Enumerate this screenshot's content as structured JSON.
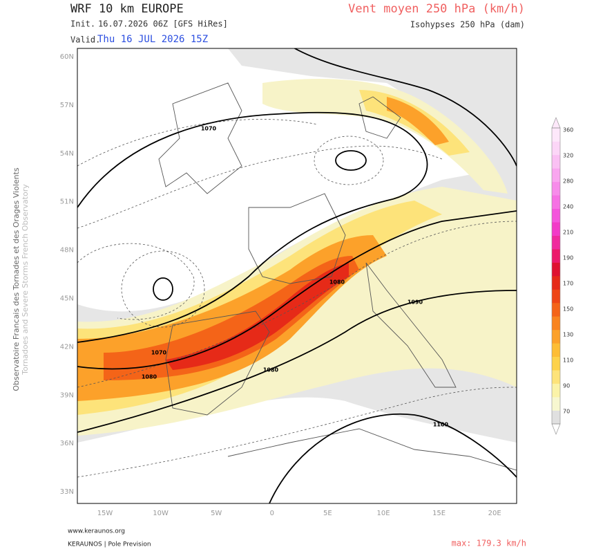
{
  "header": {
    "title": "WRF 10 km EUROPE",
    "init_label": "Init.",
    "init": "16.07.2026 06Z [GFS HiRes]",
    "valid_label": "Valid.",
    "valid": "Thu 16 JUL 2026 15Z",
    "parameter": "Vent moyen 250 hPa (km/h)",
    "contours": "Isohypses 250 hPa (dam)"
  },
  "side": {
    "line1": "Observatoire Francais des Tornades et des Orages Violents",
    "line2": "Tornadoes and Severe Storms French Observatory"
  },
  "map": {
    "lat_labels": [
      "60N",
      "57N",
      "54N",
      "51N",
      "48N",
      "45N",
      "42N",
      "39N",
      "36N",
      "33N"
    ],
    "lon_labels": [
      "15W",
      "10W",
      "5W",
      "0",
      "5E",
      "10E",
      "15E",
      "20E"
    ],
    "contour_labels": [
      "1070",
      "1080",
      "1070",
      "1080",
      "1080",
      "1090",
      "1100"
    ]
  },
  "colorbar": {
    "labels": [
      "70",
      "90",
      "110",
      "130",
      "150",
      "170",
      "190",
      "210",
      "240",
      "280",
      "320",
      "360"
    ],
    "colors": [
      "#e0e0e0",
      "#f7f7d0",
      "#fbf3a8",
      "#fde37a",
      "#fdd24a",
      "#fdbd35",
      "#fca12a",
      "#f9841f",
      "#f46418",
      "#ee4516",
      "#e62a18",
      "#df1230",
      "#ec1a6a",
      "#f02a9e",
      "#f23bc8",
      "#f455dc",
      "#f671e4",
      "#f78cea",
      "#f9a6ef",
      "#fac0f3",
      "#fcd6f7",
      "#fde8fa"
    ]
  },
  "footer": {
    "site": "www.keraunos.org",
    "brand": "KERAUNOS | Pole Prevision",
    "max": "max: 179.3 km/h"
  }
}
